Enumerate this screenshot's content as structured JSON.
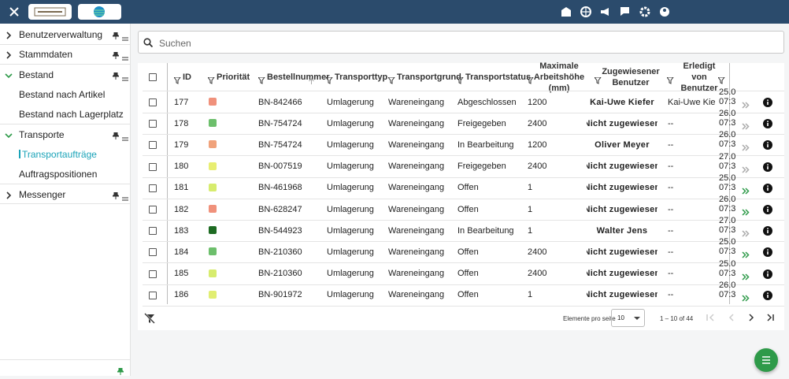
{
  "sidebar": {
    "items": [
      {
        "label": "Benutzerverwaltung",
        "kind": "group",
        "expanded": false
      },
      {
        "label": "Stammdaten",
        "kind": "group",
        "expanded": false
      },
      {
        "label": "Bestand",
        "kind": "group",
        "expanded": true
      },
      {
        "label": "Bestand nach Artikel",
        "kind": "child",
        "active": false
      },
      {
        "label": "Bestand nach Lagerplatz",
        "kind": "child",
        "active": false
      },
      {
        "label": "Transporte",
        "kind": "group",
        "expanded": true
      },
      {
        "label": "Transportaufträge",
        "kind": "child",
        "active": true
      },
      {
        "label": "Auftragspositionen",
        "kind": "child",
        "active": false
      },
      {
        "label": "Messenger",
        "kind": "group",
        "expanded": false
      }
    ]
  },
  "search": {
    "placeholder": "Suchen"
  },
  "table": {
    "headers": [
      "ID",
      "Priorität",
      "Bestellnummer",
      "Transporttyp",
      "Transportgrund",
      "Transportstatus",
      "Maximale Arbeitshöhe (mm)",
      "Zugewiesener Benutzer",
      "Erledigt von Benutzer"
    ],
    "rows": [
      {
        "id": "177",
        "priority_color": "#f0917b",
        "order": "BN-842466",
        "type": "Umlagerung",
        "reason": "Wareneingang",
        "status": "Abgeschlossen",
        "height": "1200",
        "assigned": "Kai-Uwe Kiefer",
        "done_by": "Kai-Uwe Kiefer",
        "date": "25.0",
        "time": "07:3",
        "action_active": false
      },
      {
        "id": "178",
        "priority_color": "#6dbf6c",
        "order": "BN-754724",
        "type": "Umlagerung",
        "reason": "Wareneingang",
        "status": "Freigegeben",
        "height": "2400",
        "assigned": "Nicht zugewiesen",
        "done_by": "--",
        "date": "26.0",
        "time": "07:3",
        "action_active": false
      },
      {
        "id": "179",
        "priority_color": "#f0a27b",
        "order": "BN-754724",
        "type": "Umlagerung",
        "reason": "Wareneingang",
        "status": "In Bearbeitung",
        "height": "1200",
        "assigned": "Oliver Meyer",
        "done_by": "--",
        "date": "26.0",
        "time": "07:3",
        "action_active": false
      },
      {
        "id": "180",
        "priority_color": "#e8ee72",
        "order": "BN-007519",
        "type": "Umlagerung",
        "reason": "Wareneingang",
        "status": "Freigegeben",
        "height": "2400",
        "assigned": "Nicht zugewiesen",
        "done_by": "--",
        "date": "27.0",
        "time": "07:3",
        "action_active": false
      },
      {
        "id": "181",
        "priority_color": "#d7ec6e",
        "order": "BN-461968",
        "type": "Umlagerung",
        "reason": "Wareneingang",
        "status": "Offen",
        "height": "1",
        "assigned": "Nicht zugewiesen",
        "done_by": "--",
        "date": "25.0",
        "time": "07:3",
        "action_active": true
      },
      {
        "id": "182",
        "priority_color": "#f0917b",
        "order": "BN-628247",
        "type": "Umlagerung",
        "reason": "Wareneingang",
        "status": "Offen",
        "height": "1",
        "assigned": "Nicht zugewiesen",
        "done_by": "--",
        "date": "26.0",
        "time": "07:3",
        "action_active": true
      },
      {
        "id": "183",
        "priority_color": "#1e6b23",
        "order": "BN-544923",
        "type": "Umlagerung",
        "reason": "Wareneingang",
        "status": "In Bearbeitung",
        "height": "1",
        "assigned": "Walter Jens",
        "done_by": "--",
        "date": "27.0",
        "time": "07:3",
        "action_active": false
      },
      {
        "id": "184",
        "priority_color": "#6dbf6c",
        "order": "BN-210360",
        "type": "Umlagerung",
        "reason": "Wareneingang",
        "status": "Offen",
        "height": "2400",
        "assigned": "Nicht zugewiesen",
        "done_by": "--",
        "date": "25.0",
        "time": "07:3",
        "action_active": true
      },
      {
        "id": "185",
        "priority_color": "#d7ec6e",
        "order": "BN-210360",
        "type": "Umlagerung",
        "reason": "Wareneingang",
        "status": "Offen",
        "height": "2400",
        "assigned": "Nicht zugewiesen",
        "done_by": "--",
        "date": "25.0",
        "time": "07:3",
        "action_active": true
      },
      {
        "id": "186",
        "priority_color": "#e1ee72",
        "order": "BN-901972",
        "type": "Umlagerung",
        "reason": "Wareneingang",
        "status": "Offen",
        "height": "1",
        "assigned": "Nicht zugewiesen",
        "done_by": "--",
        "date": "26.0",
        "time": "07:3",
        "action_active": true
      }
    ]
  },
  "paginator": {
    "page_size_label": "Elemente pro seite",
    "page_size": "10",
    "range": "1 – 10 of 44"
  }
}
